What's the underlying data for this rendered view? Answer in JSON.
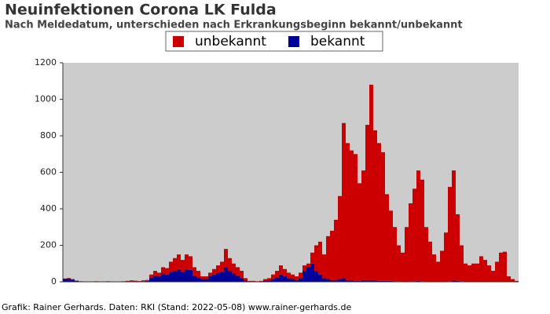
{
  "chart_data": {
    "type": "stacked_bar",
    "title": "Neuinfektionen Corona LK Fulda",
    "subtitle": "Nach Meldedatum, unterschieden nach Erkrankungsbeginn bekannt/unbekannt",
    "footer": "Grafik: Rainer Gerhards. Daten: RKI (Stand: 2022-05-08) www.rainer-gerhards.de",
    "categories": [
      null,
      null,
      null,
      null,
      null,
      null,
      null,
      null,
      null,
      null,
      null,
      null,
      null,
      null,
      null,
      null,
      null,
      null,
      null,
      null,
      null,
      null,
      null,
      null,
      null,
      null,
      null,
      null,
      null,
      null,
      null,
      null,
      null,
      null,
      null,
      null,
      null,
      null,
      null,
      null,
      null,
      null,
      null,
      null,
      null,
      null,
      null,
      null,
      null,
      null,
      null,
      null,
      null,
      null,
      null,
      null,
      null,
      null,
      null,
      null,
      null,
      null,
      null,
      null,
      null,
      null,
      null,
      null,
      null,
      null,
      null,
      null,
      null,
      null,
      null,
      null,
      null,
      null,
      null,
      null,
      null,
      null,
      null,
      null,
      null,
      null,
      null,
      null,
      null,
      null,
      null,
      null,
      null,
      null,
      null,
      null,
      null,
      null,
      null,
      null,
      null,
      null,
      null,
      null,
      null,
      null,
      null,
      null,
      null,
      null,
      null,
      null,
      null,
      null,
      null,
      null
    ],
    "series": [
      {
        "name": "unbekannt",
        "color": "#cc0000",
        "values": [
          3,
          3,
          3,
          2,
          1,
          1,
          1,
          1,
          1,
          1,
          1,
          1,
          1,
          1,
          1,
          1,
          3,
          5,
          4,
          3,
          5,
          5,
          15,
          25,
          20,
          35,
          35,
          55,
          70,
          80,
          65,
          80,
          75,
          45,
          35,
          15,
          15,
          20,
          30,
          40,
          55,
          100,
          70,
          55,
          45,
          40,
          12,
          3,
          3,
          2,
          3,
          9,
          12,
          25,
          35,
          50,
          40,
          30,
          25,
          20,
          30,
          30,
          20,
          60,
          140,
          180,
          130,
          235,
          270,
          330,
          455,
          850,
          750,
          712,
          695,
          535,
          600,
          852,
          1070,
          822,
          755,
          705,
          475,
          385,
          297,
          197,
          158,
          298,
          427,
          507,
          605,
          557,
          298,
          218,
          149,
          109,
          169,
          268,
          517,
          602,
          365,
          197,
          99,
          89,
          99,
          99,
          139,
          119,
          89,
          59,
          109,
          159,
          164,
          30,
          15,
          5
        ]
      },
      {
        "name": "bekannt",
        "color": "#000099",
        "values": [
          15,
          18,
          12,
          5,
          2,
          1,
          0,
          1,
          2,
          0,
          1,
          2,
          1,
          0,
          1,
          2,
          2,
          3,
          2,
          1,
          3,
          5,
          25,
          35,
          30,
          45,
          40,
          55,
          60,
          70,
          55,
          70,
          65,
          35,
          25,
          15,
          15,
          30,
          40,
          50,
          55,
          80,
          60,
          45,
          35,
          20,
          8,
          2,
          2,
          1,
          2,
          6,
          8,
          15,
          25,
          40,
          30,
          20,
          15,
          10,
          20,
          60,
          80,
          100,
          60,
          40,
          20,
          15,
          10,
          10,
          15,
          20,
          10,
          8,
          5,
          5,
          10,
          8,
          10,
          8,
          5,
          5,
          5,
          5,
          3,
          3,
          2,
          2,
          3,
          3,
          5,
          3,
          2,
          2,
          1,
          1,
          1,
          2,
          3,
          8,
          5,
          3,
          1,
          1,
          1,
          1,
          1,
          1,
          1,
          1,
          1,
          1,
          1,
          0,
          0,
          0
        ]
      }
    ],
    "ylim": [
      0,
      1200
    ],
    "yticks": [
      0,
      200,
      400,
      600,
      800,
      1000,
      1200
    ],
    "grid": false
  }
}
